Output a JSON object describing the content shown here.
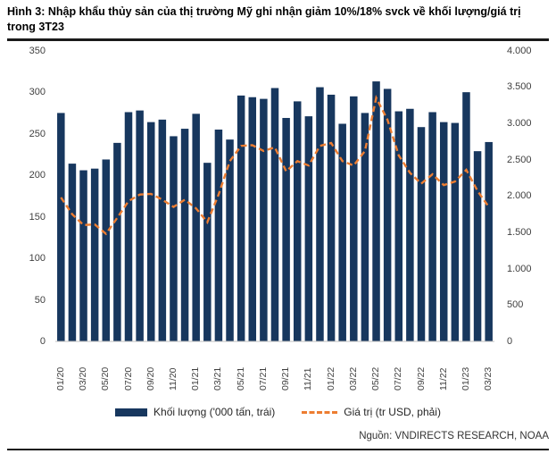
{
  "figure": {
    "title": "Hình 3: Nhập khẩu thủy sản của thị trường Mỹ ghi nhận giảm 10%/18% svck về khối lượng/giá trị trong 3T23",
    "source": "Nguồn: VNDIRECTS RESEARCH, NOAA"
  },
  "colors": {
    "bar": "#17375E",
    "line": "#ED7D31",
    "axis_text": "#404040",
    "axis_line": "#BFBFBF",
    "rule": "#1a1a1a"
  },
  "chart_data": {
    "type": "bar",
    "subtype": "combo-bar-line",
    "grid": false,
    "legend_position": "bottom",
    "categories": [
      "01/20",
      "02/20",
      "03/20",
      "04/20",
      "05/20",
      "06/20",
      "07/20",
      "08/20",
      "09/20",
      "10/20",
      "11/20",
      "12/20",
      "01/21",
      "02/21",
      "03/21",
      "04/21",
      "05/21",
      "06/21",
      "07/21",
      "08/21",
      "09/21",
      "10/21",
      "11/21",
      "12/21",
      "01/22",
      "02/22",
      "03/22",
      "04/22",
      "05/22",
      "06/22",
      "07/22",
      "08/22",
      "09/22",
      "10/22",
      "11/22",
      "12/22",
      "01/23",
      "02/23",
      "03/23"
    ],
    "x_tick_labels": [
      "01/20",
      "03/20",
      "05/20",
      "07/20",
      "09/20",
      "11/20",
      "01/21",
      "03/21",
      "05/21",
      "07/21",
      "09/21",
      "11/21",
      "01/22",
      "03/22",
      "05/22",
      "07/22",
      "09/22",
      "11/22",
      "01/23",
      "03/23"
    ],
    "series": [
      {
        "name": "Khối lượng ('000 tấn, trái)",
        "type": "bar",
        "axis": "left",
        "color": "#17375E",
        "values": [
          275,
          214,
          206,
          208,
          219,
          239,
          276,
          278,
          264,
          267,
          247,
          256,
          274,
          215,
          255,
          243,
          296,
          294,
          292,
          305,
          269,
          289,
          271,
          306,
          297,
          262,
          295,
          275,
          313,
          304,
          277,
          280,
          258,
          276,
          264,
          263,
          300,
          229,
          240
        ]
      },
      {
        "name": "Giá trị (tr USD, phải)",
        "type": "line",
        "style": "dashed",
        "axis": "right",
        "color": "#ED7D31",
        "values": [
          1980,
          1750,
          1600,
          1610,
          1480,
          1700,
          1930,
          2020,
          2030,
          1950,
          1850,
          1950,
          1830,
          1640,
          2020,
          2480,
          2690,
          2700,
          2620,
          2670,
          2340,
          2480,
          2420,
          2690,
          2730,
          2480,
          2420,
          2620,
          3350,
          3050,
          2560,
          2320,
          2170,
          2300,
          2150,
          2200,
          2360,
          2070,
          1850
        ]
      }
    ],
    "left_axis": {
      "label": "",
      "min": 0,
      "max": 350,
      "step": 50,
      "ticks": [
        "350",
        "300",
        "250",
        "200",
        "150",
        "100",
        "50",
        "0"
      ]
    },
    "right_axis": {
      "label": "",
      "min": 0,
      "max": 4000,
      "step": 500,
      "ticks": [
        "4.000",
        "3.500",
        "3.000",
        "2.500",
        "2.000",
        "1.500",
        "1.000",
        "500",
        "0"
      ]
    }
  }
}
